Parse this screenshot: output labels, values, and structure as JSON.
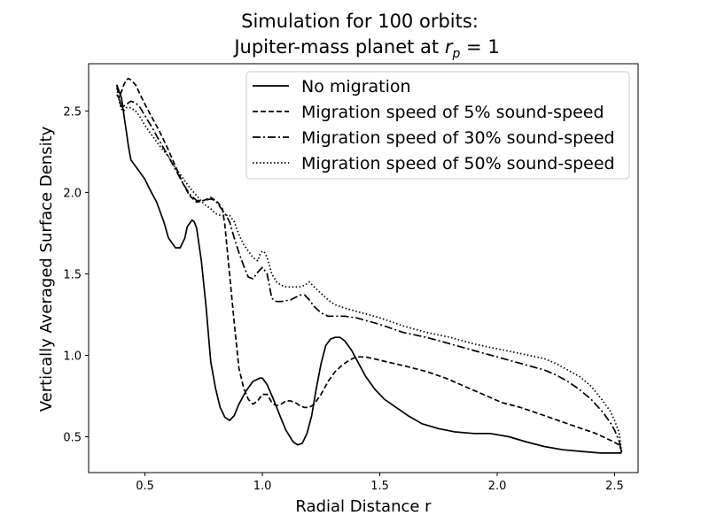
{
  "chart_data": {
    "type": "line",
    "title_line1": "Simulation for 100 orbits:",
    "title_line2_prefix": "Jupiter-mass planet at ",
    "title_var": "r",
    "title_sub": "p",
    "title_suffix": " = 1",
    "xlabel": "Radial Distance r",
    "ylabel": "Vertically Averaged Surface Density",
    "xlim": [
      0.26,
      2.6
    ],
    "ylim": [
      0.28,
      2.79
    ],
    "xticks": [
      0.5,
      1.0,
      1.5,
      2.0,
      2.5
    ],
    "xtick_labels": [
      "0.5",
      "1.0",
      "1.5",
      "2.0",
      "2.5"
    ],
    "yticks": [
      0.5,
      1.0,
      1.5,
      2.0,
      2.5
    ],
    "ytick_labels": [
      "0.5",
      "1.0",
      "1.5",
      "2.0",
      "2.5"
    ],
    "grid": false,
    "legend_position": "upper-right",
    "series": [
      {
        "name": "No migration",
        "style": "solid",
        "color": "#000000",
        "x": [
          0.38,
          0.4,
          0.41,
          0.42,
          0.43,
          0.44,
          0.46,
          0.48,
          0.5,
          0.52,
          0.55,
          0.58,
          0.6,
          0.63,
          0.65,
          0.67,
          0.68,
          0.7,
          0.71,
          0.72,
          0.74,
          0.76,
          0.78,
          0.8,
          0.82,
          0.84,
          0.86,
          0.88,
          0.9,
          0.93,
          0.96,
          0.99,
          1.0,
          1.02,
          1.05,
          1.08,
          1.1,
          1.13,
          1.15,
          1.17,
          1.19,
          1.21,
          1.23,
          1.25,
          1.27,
          1.29,
          1.31,
          1.33,
          1.35,
          1.38,
          1.41,
          1.44,
          1.48,
          1.52,
          1.57,
          1.62,
          1.68,
          1.75,
          1.82,
          1.9,
          1.97,
          2.05,
          2.12,
          2.2,
          2.28,
          2.36,
          2.44,
          2.49,
          2.52,
          2.53
        ],
        "y": [
          2.66,
          2.58,
          2.48,
          2.38,
          2.28,
          2.2,
          2.16,
          2.12,
          2.08,
          2.02,
          1.94,
          1.82,
          1.72,
          1.66,
          1.66,
          1.72,
          1.79,
          1.83,
          1.82,
          1.78,
          1.58,
          1.3,
          0.96,
          0.8,
          0.68,
          0.62,
          0.6,
          0.63,
          0.7,
          0.78,
          0.84,
          0.86,
          0.86,
          0.82,
          0.72,
          0.61,
          0.54,
          0.47,
          0.45,
          0.46,
          0.52,
          0.63,
          0.8,
          0.95,
          1.06,
          1.1,
          1.11,
          1.11,
          1.09,
          1.03,
          0.95,
          0.87,
          0.79,
          0.73,
          0.68,
          0.63,
          0.58,
          0.55,
          0.53,
          0.52,
          0.52,
          0.5,
          0.47,
          0.44,
          0.42,
          0.41,
          0.4,
          0.4,
          0.4,
          0.4
        ]
      },
      {
        "name": "Migration speed of 5% sound-speed",
        "style": "dashed",
        "color": "#000000",
        "x": [
          0.38,
          0.39,
          0.4,
          0.41,
          0.42,
          0.43,
          0.44,
          0.46,
          0.48,
          0.5,
          0.53,
          0.56,
          0.6,
          0.63,
          0.66,
          0.69,
          0.72,
          0.75,
          0.78,
          0.8,
          0.81,
          0.83,
          0.84,
          0.86,
          0.88,
          0.9,
          0.92,
          0.94,
          0.96,
          0.98,
          1.0,
          1.02,
          1.04,
          1.06,
          1.08,
          1.1,
          1.12,
          1.14,
          1.16,
          1.18,
          1.2,
          1.22,
          1.25,
          1.28,
          1.31,
          1.34,
          1.37,
          1.4,
          1.44,
          1.5,
          1.56,
          1.62,
          1.7,
          1.78,
          1.86,
          1.94,
          2.02,
          2.1,
          2.18,
          2.26,
          2.34,
          2.42,
          2.48,
          2.52,
          2.53
        ],
        "y": [
          2.6,
          2.58,
          2.62,
          2.66,
          2.69,
          2.7,
          2.69,
          2.66,
          2.6,
          2.54,
          2.46,
          2.38,
          2.26,
          2.16,
          2.06,
          1.98,
          1.94,
          1.95,
          1.97,
          1.95,
          1.94,
          1.9,
          1.8,
          1.5,
          1.2,
          0.92,
          0.8,
          0.73,
          0.7,
          0.72,
          0.76,
          0.76,
          0.71,
          0.69,
          0.7,
          0.72,
          0.72,
          0.71,
          0.69,
          0.68,
          0.68,
          0.7,
          0.76,
          0.84,
          0.9,
          0.94,
          0.97,
          0.99,
          0.99,
          0.97,
          0.95,
          0.93,
          0.9,
          0.86,
          0.81,
          0.76,
          0.71,
          0.68,
          0.64,
          0.6,
          0.56,
          0.52,
          0.48,
          0.45,
          0.41
        ]
      },
      {
        "name": "Migration speed of 30% sound-speed",
        "style": "dashdot",
        "color": "#000000",
        "x": [
          0.38,
          0.39,
          0.4,
          0.41,
          0.42,
          0.43,
          0.44,
          0.46,
          0.48,
          0.5,
          0.53,
          0.56,
          0.6,
          0.63,
          0.66,
          0.69,
          0.72,
          0.75,
          0.78,
          0.8,
          0.82,
          0.84,
          0.86,
          0.88,
          0.9,
          0.92,
          0.94,
          0.96,
          0.98,
          1.0,
          1.02,
          1.04,
          1.06,
          1.08,
          1.12,
          1.16,
          1.18,
          1.2,
          1.22,
          1.25,
          1.28,
          1.31,
          1.35,
          1.4,
          1.5,
          1.6,
          1.7,
          1.8,
          1.9,
          2.0,
          2.1,
          2.2,
          2.25,
          2.3,
          2.35,
          2.4,
          2.45,
          2.48,
          2.5,
          2.52,
          2.53
        ],
        "y": [
          2.66,
          2.58,
          2.52,
          2.53,
          2.54,
          2.55,
          2.56,
          2.55,
          2.52,
          2.47,
          2.4,
          2.32,
          2.22,
          2.14,
          2.06,
          1.99,
          1.95,
          1.95,
          1.96,
          1.95,
          1.91,
          1.87,
          1.82,
          1.72,
          1.63,
          1.55,
          1.48,
          1.47,
          1.51,
          1.54,
          1.5,
          1.35,
          1.33,
          1.33,
          1.34,
          1.37,
          1.37,
          1.34,
          1.3,
          1.26,
          1.24,
          1.24,
          1.24,
          1.23,
          1.19,
          1.14,
          1.11,
          1.07,
          1.03,
          0.99,
          0.95,
          0.91,
          0.88,
          0.84,
          0.79,
          0.73,
          0.65,
          0.59,
          0.54,
          0.47,
          0.4
        ]
      },
      {
        "name": "Migration speed of 50% sound-speed",
        "style": "dotted",
        "color": "#000000",
        "x": [
          0.38,
          0.39,
          0.4,
          0.41,
          0.42,
          0.44,
          0.46,
          0.48,
          0.5,
          0.53,
          0.56,
          0.6,
          0.63,
          0.66,
          0.69,
          0.72,
          0.75,
          0.78,
          0.8,
          0.82,
          0.84,
          0.86,
          0.88,
          0.9,
          0.92,
          0.94,
          0.96,
          0.98,
          0.99,
          1.0,
          1.01,
          1.02,
          1.04,
          1.06,
          1.08,
          1.1,
          1.12,
          1.14,
          1.16,
          1.18,
          1.2,
          1.22,
          1.25,
          1.28,
          1.31,
          1.35,
          1.4,
          1.5,
          1.6,
          1.7,
          1.8,
          1.9,
          2.0,
          2.1,
          2.2,
          2.25,
          2.3,
          2.35,
          2.4,
          2.45,
          2.48,
          2.5,
          2.52,
          2.53
        ],
        "y": [
          2.64,
          2.56,
          2.51,
          2.5,
          2.52,
          2.52,
          2.5,
          2.46,
          2.41,
          2.35,
          2.29,
          2.22,
          2.15,
          2.09,
          2.03,
          1.98,
          1.93,
          1.9,
          1.87,
          1.86,
          1.86,
          1.86,
          1.82,
          1.74,
          1.68,
          1.64,
          1.6,
          1.58,
          1.62,
          1.64,
          1.63,
          1.6,
          1.5,
          1.45,
          1.43,
          1.42,
          1.42,
          1.42,
          1.42,
          1.43,
          1.45,
          1.42,
          1.38,
          1.34,
          1.31,
          1.29,
          1.27,
          1.23,
          1.18,
          1.14,
          1.11,
          1.07,
          1.04,
          1.01,
          0.98,
          0.95,
          0.91,
          0.87,
          0.81,
          0.72,
          0.66,
          0.6,
          0.52,
          0.4
        ]
      }
    ]
  }
}
